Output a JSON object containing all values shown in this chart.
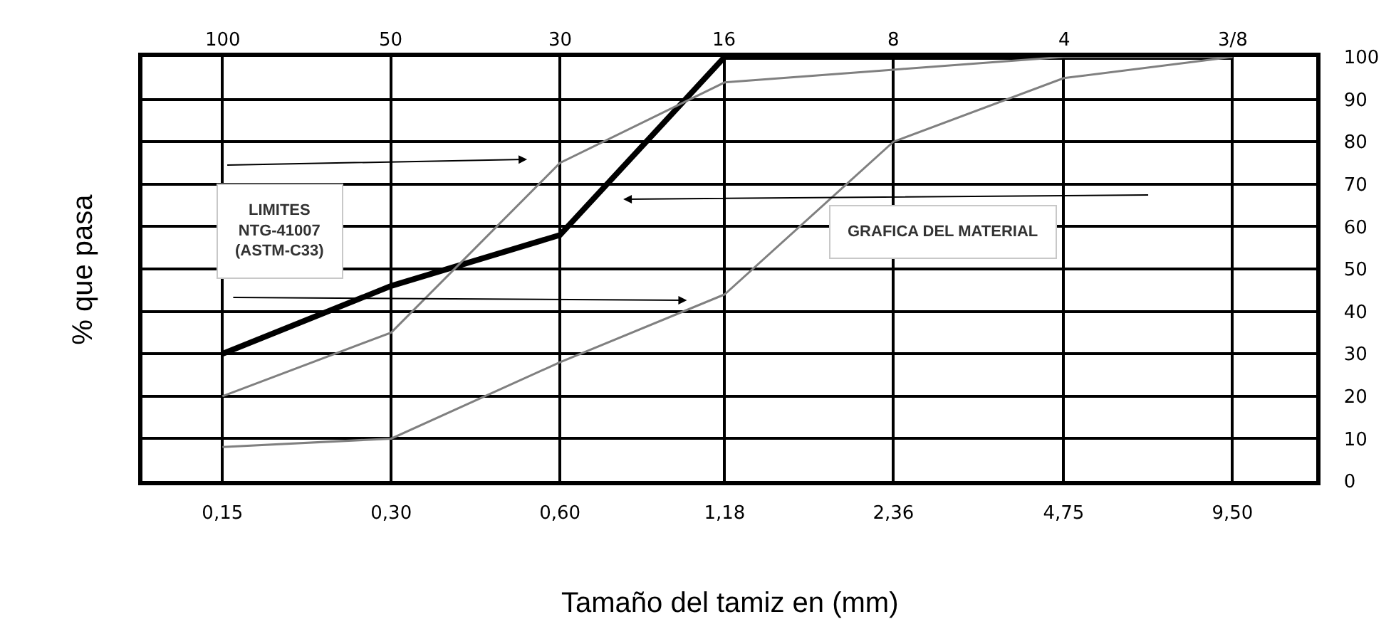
{
  "chart_data": {
    "type": "line",
    "xlabel": "Tamaño del tamiz en (mm)",
    "ylabel": "% que pasa",
    "x": [
      0.15,
      0.3,
      0.6,
      1.18,
      2.36,
      4.75,
      9.5
    ],
    "log": "x",
    "xlim": [
      0.108,
      13.4
    ],
    "xticks": [
      {
        "value": 0.15,
        "label": "0,15"
      },
      {
        "value": 0.3,
        "label": "0,30"
      },
      {
        "value": 0.6,
        "label": "0,60"
      },
      {
        "value": 1.18,
        "label": "1,18"
      },
      {
        "value": 2.36,
        "label": "2,36"
      },
      {
        "value": 4.75,
        "label": "4,75"
      },
      {
        "value": 9.5,
        "label": "9,50"
      }
    ],
    "series": [
      {
        "color": "#000000",
        "values": [
          30,
          46,
          58,
          100,
          100,
          100,
          100
        ]
      },
      {
        "color": "#808080",
        "values": [
          20,
          35,
          75,
          94,
          97,
          100,
          100
        ]
      },
      {
        "color": "#808080",
        "values": [
          8,
          10,
          28,
          44,
          80,
          95,
          100
        ]
      }
    ],
    "ylim": [
      0,
      100
    ],
    "yticks": [
      0,
      10,
      20,
      30,
      40,
      50,
      60,
      70,
      80,
      90,
      100
    ],
    "grid": true,
    "marker": "none",
    "line_style": "solid",
    "annotations": [
      "LIMITES\nNTG-41007\n(ASTM-C33)",
      "GRAFICA DEL MATERIAL",
      "100",
      "50",
      "30",
      "16",
      "8",
      "4",
      "3/8"
    ]
  }
}
